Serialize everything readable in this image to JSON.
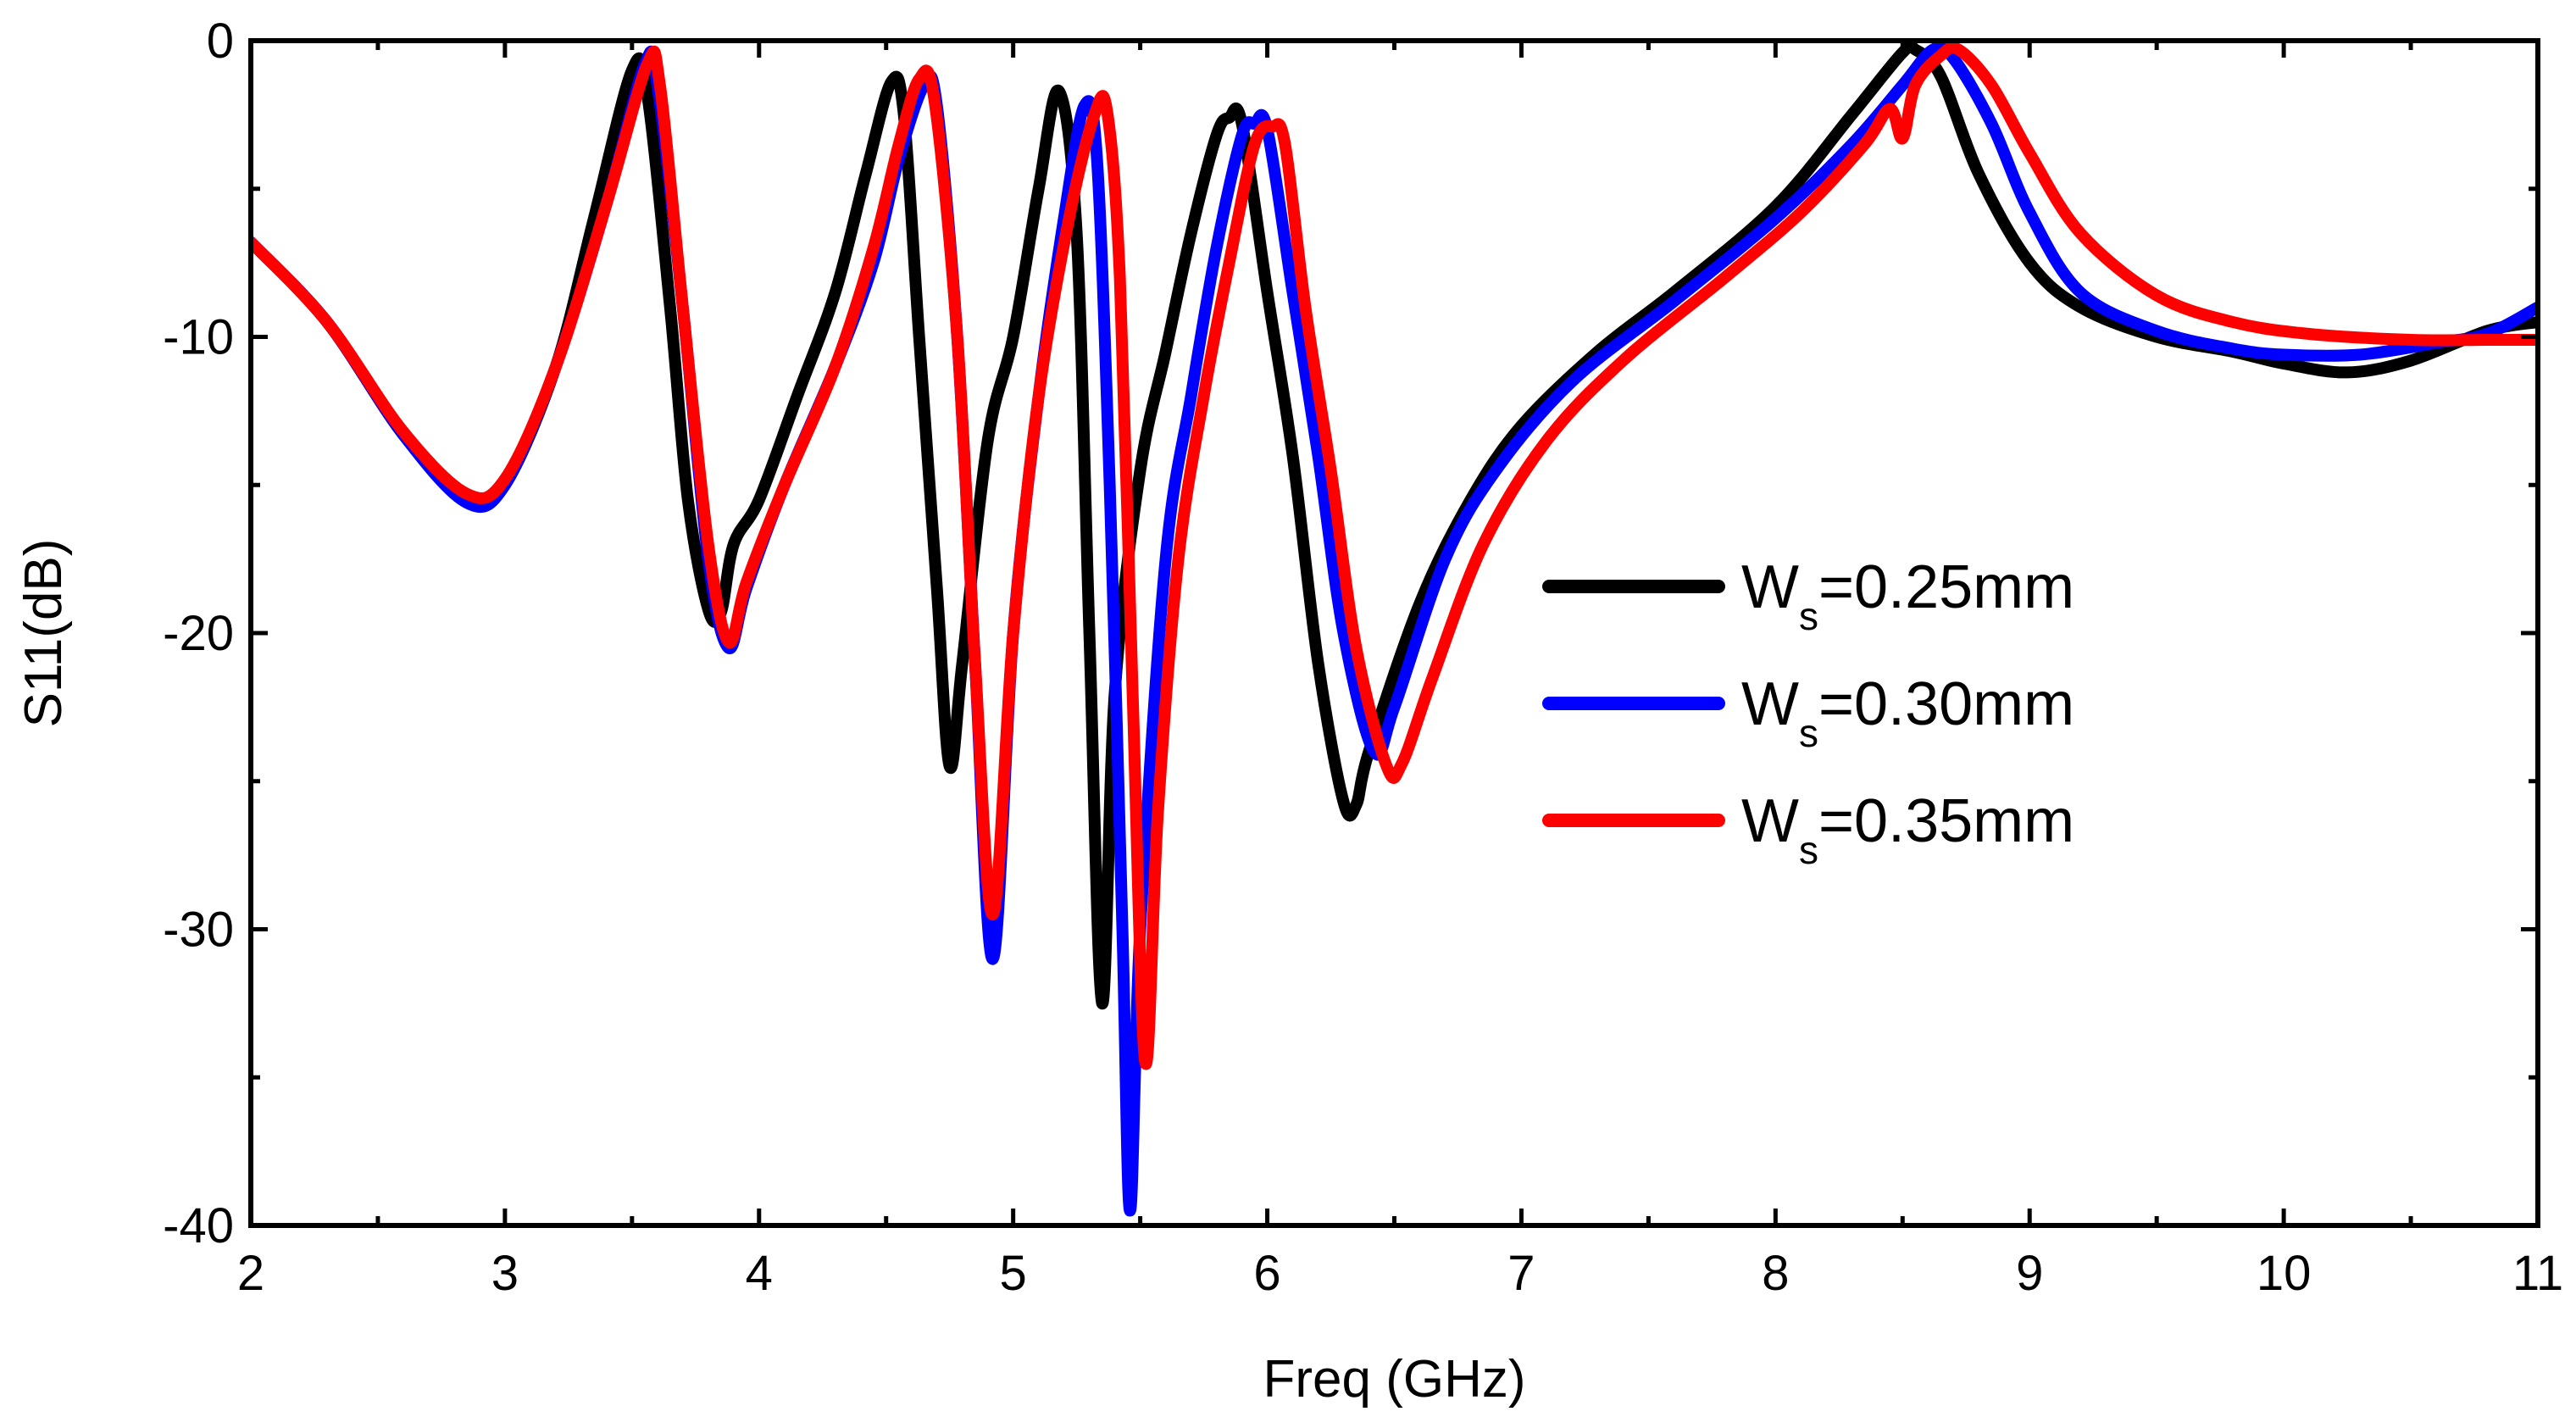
{
  "chart_data": {
    "type": "line",
    "title": "",
    "xlabel": "Freq (GHz)",
    "ylabel": "S11(dB)",
    "xlim": [
      2,
      11
    ],
    "ylim": [
      -40,
      0
    ],
    "xticks": [
      2,
      3,
      4,
      5,
      6,
      7,
      8,
      9,
      10,
      11
    ],
    "yticks": [
      0,
      -10,
      -20,
      -30,
      -40
    ],
    "grid": false,
    "legend_position": "center-right",
    "series": [
      {
        "name": "Ws=0.25mm",
        "label_main": "W",
        "label_sub": "s",
        "label_tail": "=0.25mm",
        "color": "#000000",
        "points": [
          [
            2.0,
            -6.8
          ],
          [
            2.3,
            -9.5
          ],
          [
            2.6,
            -13.3
          ],
          [
            2.85,
            -15.5
          ],
          [
            3.0,
            -15.0
          ],
          [
            3.2,
            -11.0
          ],
          [
            3.35,
            -6.0
          ],
          [
            3.5,
            -1.0
          ],
          [
            3.56,
            -1.8
          ],
          [
            3.65,
            -9.0
          ],
          [
            3.72,
            -15.5
          ],
          [
            3.8,
            -19.2
          ],
          [
            3.85,
            -19.3
          ],
          [
            3.9,
            -17.0
          ],
          [
            4.0,
            -15.5
          ],
          [
            4.15,
            -12.0
          ],
          [
            4.3,
            -8.5
          ],
          [
            4.42,
            -4.5
          ],
          [
            4.52,
            -1.4
          ],
          [
            4.57,
            -2.5
          ],
          [
            4.63,
            -10.0
          ],
          [
            4.7,
            -18.5
          ],
          [
            4.75,
            -24.5
          ],
          [
            4.8,
            -21.0
          ],
          [
            4.9,
            -13.5
          ],
          [
            5.0,
            -10.0
          ],
          [
            5.1,
            -5.0
          ],
          [
            5.18,
            -1.7
          ],
          [
            5.25,
            -6.5
          ],
          [
            5.3,
            -20.0
          ],
          [
            5.35,
            -32.5
          ],
          [
            5.4,
            -22.0
          ],
          [
            5.5,
            -14.5
          ],
          [
            5.6,
            -10.5
          ],
          [
            5.7,
            -6.5
          ],
          [
            5.8,
            -3.2
          ],
          [
            5.85,
            -2.6
          ],
          [
            5.9,
            -2.8
          ],
          [
            6.0,
            -8.5
          ],
          [
            6.1,
            -14.0
          ],
          [
            6.2,
            -21.0
          ],
          [
            6.3,
            -25.7
          ],
          [
            6.35,
            -25.8
          ],
          [
            6.4,
            -24.0
          ],
          [
            6.6,
            -19.0
          ],
          [
            6.8,
            -15.5
          ],
          [
            7.0,
            -13.0
          ],
          [
            7.3,
            -10.5
          ],
          [
            7.6,
            -8.5
          ],
          [
            8.0,
            -5.6
          ],
          [
            8.3,
            -2.5
          ],
          [
            8.5,
            -0.4
          ],
          [
            8.55,
            -0.3
          ],
          [
            8.65,
            -1.2
          ],
          [
            8.8,
            -4.5
          ],
          [
            9.0,
            -7.5
          ],
          [
            9.2,
            -9.0
          ],
          [
            9.5,
            -10.0
          ],
          [
            9.8,
            -10.5
          ],
          [
            10.0,
            -10.9
          ],
          [
            10.25,
            -11.2
          ],
          [
            10.5,
            -10.8
          ],
          [
            10.8,
            -9.8
          ],
          [
            11.0,
            -9.5
          ]
        ]
      },
      {
        "name": "Ws=0.30mm",
        "label_main": "W",
        "label_sub": "s",
        "label_tail": "=0.30mm",
        "color": "#0000ff",
        "points": [
          [
            2.0,
            -6.8
          ],
          [
            2.3,
            -9.5
          ],
          [
            2.6,
            -13.3
          ],
          [
            2.85,
            -15.6
          ],
          [
            3.0,
            -15.0
          ],
          [
            3.2,
            -11.0
          ],
          [
            3.4,
            -5.5
          ],
          [
            3.55,
            -0.8
          ],
          [
            3.6,
            -1.5
          ],
          [
            3.7,
            -9.0
          ],
          [
            3.8,
            -17.5
          ],
          [
            3.88,
            -20.5
          ],
          [
            3.95,
            -18.5
          ],
          [
            4.1,
            -15.0
          ],
          [
            4.3,
            -11.0
          ],
          [
            4.45,
            -7.5
          ],
          [
            4.55,
            -4.0
          ],
          [
            4.65,
            -1.5
          ],
          [
            4.7,
            -2.2
          ],
          [
            4.78,
            -10.0
          ],
          [
            4.85,
            -21.0
          ],
          [
            4.92,
            -31.0
          ],
          [
            5.0,
            -20.0
          ],
          [
            5.1,
            -12.0
          ],
          [
            5.2,
            -6.0
          ],
          [
            5.28,
            -2.2
          ],
          [
            5.33,
            -4.0
          ],
          [
            5.38,
            -15.0
          ],
          [
            5.43,
            -30.0
          ],
          [
            5.46,
            -39.5
          ],
          [
            5.5,
            -30.0
          ],
          [
            5.6,
            -17.5
          ],
          [
            5.7,
            -12.0
          ],
          [
            5.8,
            -7.0
          ],
          [
            5.9,
            -3.2
          ],
          [
            5.95,
            -2.8
          ],
          [
            6.0,
            -3.0
          ],
          [
            6.1,
            -8.5
          ],
          [
            6.2,
            -14.0
          ],
          [
            6.3,
            -20.0
          ],
          [
            6.42,
            -24.0
          ],
          [
            6.5,
            -22.5
          ],
          [
            6.7,
            -17.5
          ],
          [
            6.9,
            -14.5
          ],
          [
            7.2,
            -11.5
          ],
          [
            7.6,
            -8.8
          ],
          [
            8.0,
            -6.0
          ],
          [
            8.3,
            -3.5
          ],
          [
            8.5,
            -1.5
          ],
          [
            8.62,
            -0.3
          ],
          [
            8.7,
            -0.6
          ],
          [
            8.85,
            -2.8
          ],
          [
            9.0,
            -5.8
          ],
          [
            9.2,
            -8.5
          ],
          [
            9.5,
            -9.8
          ],
          [
            9.8,
            -10.4
          ],
          [
            10.0,
            -10.6
          ],
          [
            10.3,
            -10.6
          ],
          [
            10.6,
            -10.2
          ],
          [
            10.8,
            -9.9
          ],
          [
            11.0,
            -9.0
          ]
        ]
      },
      {
        "name": "Ws=0.35mm",
        "label_main": "W",
        "label_sub": "s",
        "label_tail": "=0.35mm",
        "color": "#ff0000",
        "points": [
          [
            2.0,
            -6.8
          ],
          [
            2.3,
            -9.5
          ],
          [
            2.6,
            -13.2
          ],
          [
            2.85,
            -15.3
          ],
          [
            3.0,
            -14.8
          ],
          [
            3.2,
            -11.0
          ],
          [
            3.4,
            -5.5
          ],
          [
            3.56,
            -0.8
          ],
          [
            3.61,
            -1.5
          ],
          [
            3.7,
            -9.0
          ],
          [
            3.8,
            -17.0
          ],
          [
            3.88,
            -20.3
          ],
          [
            3.95,
            -18.3
          ],
          [
            4.1,
            -15.0
          ],
          [
            4.3,
            -11.0
          ],
          [
            4.45,
            -7.0
          ],
          [
            4.55,
            -3.5
          ],
          [
            4.63,
            -1.3
          ],
          [
            4.69,
            -2.0
          ],
          [
            4.78,
            -10.0
          ],
          [
            4.85,
            -21.0
          ],
          [
            4.92,
            -29.5
          ],
          [
            5.0,
            -20.0
          ],
          [
            5.1,
            -12.0
          ],
          [
            5.22,
            -6.0
          ],
          [
            5.32,
            -2.5
          ],
          [
            5.37,
            -2.4
          ],
          [
            5.42,
            -8.0
          ],
          [
            5.47,
            -22.0
          ],
          [
            5.52,
            -34.5
          ],
          [
            5.57,
            -26.0
          ],
          [
            5.65,
            -17.5
          ],
          [
            5.75,
            -12.0
          ],
          [
            5.85,
            -7.5
          ],
          [
            5.95,
            -3.5
          ],
          [
            6.02,
            -2.9
          ],
          [
            6.07,
            -3.5
          ],
          [
            6.15,
            -9.0
          ],
          [
            6.25,
            -14.5
          ],
          [
            6.35,
            -20.5
          ],
          [
            6.47,
            -24.5
          ],
          [
            6.53,
            -24.4
          ],
          [
            6.65,
            -21.5
          ],
          [
            6.85,
            -17.0
          ],
          [
            7.1,
            -13.5
          ],
          [
            7.4,
            -10.8
          ],
          [
            7.8,
            -8.0
          ],
          [
            8.1,
            -5.8
          ],
          [
            8.35,
            -3.5
          ],
          [
            8.45,
            -2.3
          ],
          [
            8.5,
            -3.3
          ],
          [
            8.55,
            -1.5
          ],
          [
            8.65,
            -0.5
          ],
          [
            8.72,
            -0.3
          ],
          [
            8.85,
            -1.5
          ],
          [
            9.0,
            -3.8
          ],
          [
            9.2,
            -6.5
          ],
          [
            9.5,
            -8.6
          ],
          [
            9.8,
            -9.5
          ],
          [
            10.1,
            -9.9
          ],
          [
            10.5,
            -10.1
          ],
          [
            10.8,
            -10.1
          ],
          [
            11.0,
            -10.1
          ]
        ]
      }
    ]
  }
}
